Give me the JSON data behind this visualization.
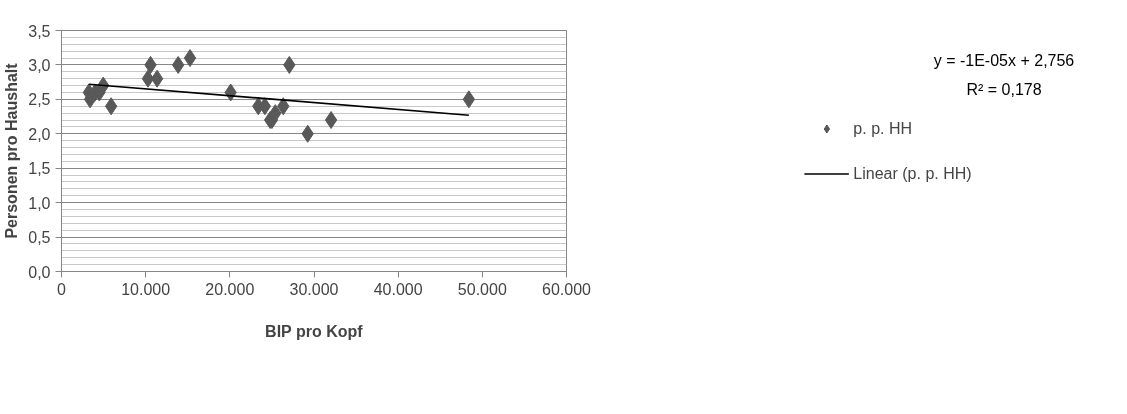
{
  "chart_data": {
    "type": "scatter",
    "xlabel": "BIP pro Kopf",
    "ylabel": "Personen pro Haushalt",
    "xlim": [
      0,
      60000
    ],
    "ylim": [
      0,
      3.5
    ],
    "xticks": [
      0,
      {
        "value": 10000,
        "label": "10.000"
      },
      {
        "value": 20000,
        "label": "20.000"
      },
      {
        "value": 30000,
        "label": "30.000"
      },
      {
        "value": 40000,
        "label": "40.000"
      },
      {
        "value": 50000,
        "label": "50.000"
      },
      {
        "value": 60000,
        "label": "60.000"
      }
    ],
    "yticks": [
      {
        "value": 0,
        "label": "0,0"
      },
      {
        "value": 0.5,
        "label": "0,5"
      },
      {
        "value": 1,
        "label": "1,0"
      },
      {
        "value": 1.5,
        "label": "1,5"
      },
      {
        "value": 2,
        "label": "2,0"
      },
      {
        "value": 2.5,
        "label": "2,5"
      },
      {
        "value": 3,
        "label": "3,0"
      },
      {
        "value": 3.5,
        "label": "3,5"
      }
    ],
    "grid": "y",
    "legend": "right",
    "series": [
      {
        "name": "p. p. HH",
        "marker": "diamond",
        "color": "#595959",
        "x": [
          3250,
          3400,
          4000,
          4500,
          4960,
          5900,
          10270,
          10580,
          11360,
          13860,
          15270,
          20100,
          23380,
          24160,
          24790,
          25000,
          25400,
          26350,
          27070,
          29250,
          32030,
          48400
        ],
        "values": [
          2.6,
          2.5,
          2.6,
          2.6,
          2.7,
          2.4,
          2.8,
          3.0,
          2.8,
          3.0,
          3.1,
          2.6,
          2.4,
          2.4,
          2.2,
          2.2,
          2.3,
          2.4,
          3.0,
          2.0,
          2.2,
          2.5
        ]
      },
      {
        "name": "Linear (p. p. HH)",
        "type": "line",
        "color": "#000000",
        "line_style": "solid",
        "x": [
          3250,
          48400
        ],
        "values": [
          2.72,
          2.27
        ]
      }
    ],
    "annotations": [
      "y = -1E-05x + 2,756",
      "R² = 0,178"
    ]
  }
}
